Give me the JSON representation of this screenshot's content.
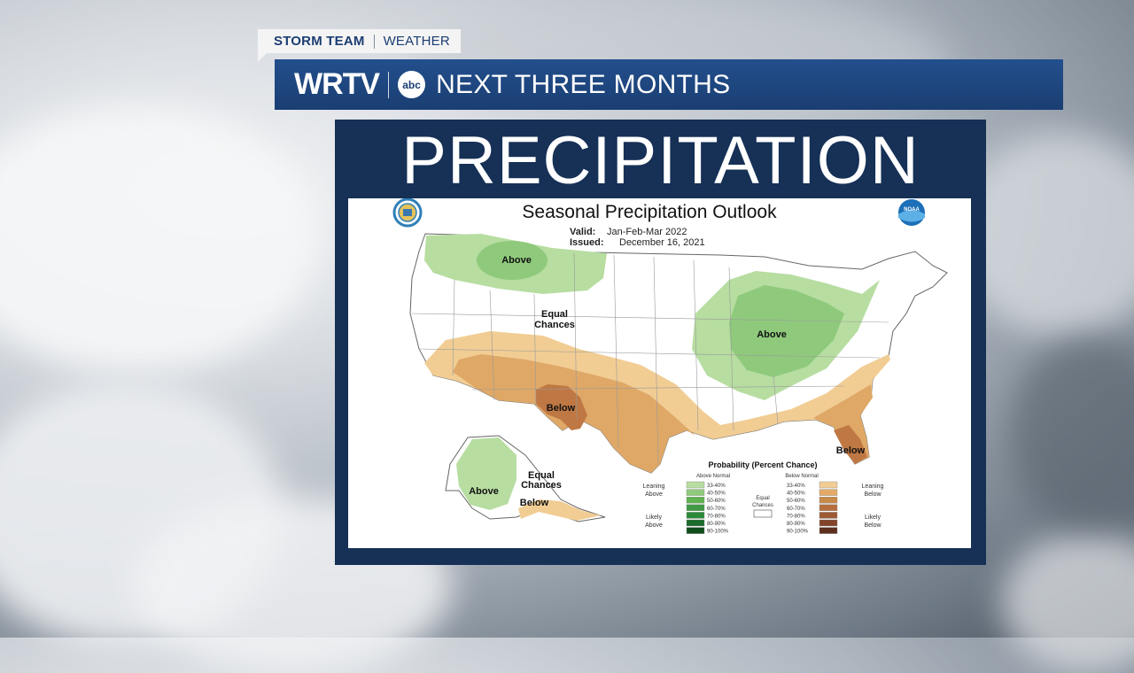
{
  "header": {
    "tag_main": "STORM TEAM",
    "tag_sub": "WEATHER",
    "brand": "WRTV",
    "network_logo": "abc",
    "title": "NEXT THREE MONTHS"
  },
  "panel": {
    "title": "PRECIPITATION"
  },
  "map": {
    "title": "Seasonal Precipitation Outlook",
    "valid_label": "Valid:",
    "valid_value": "Jan-Feb-Mar 2022",
    "issued_label": "Issued:",
    "issued_value": "December 16, 2021",
    "left_seal": "Department of Commerce seal",
    "right_seal_text": "NOAA",
    "region_labels": {
      "above_nw": "Above",
      "equal_center_1": "Equal",
      "equal_center_2": "Chances",
      "above_glakes": "Above",
      "below_sw": "Below",
      "below_se": "Below",
      "above_ak": "Above",
      "equal_ak_1": "Equal",
      "equal_ak_2": "Chances",
      "below_ak": "Below"
    },
    "legend": {
      "title": "Probability (Percent Chance)",
      "above_header": "Above Normal",
      "below_header": "Below Normal",
      "equal_1": "Equal",
      "equal_2": "Chances",
      "leaning_above_1": "Leaning",
      "leaning_above_2": "Above",
      "likely_above_1": "Likely",
      "likely_above_2": "Above",
      "leaning_below_1": "Leaning",
      "leaning_below_2": "Below",
      "likely_below_1": "Likely",
      "likely_below_2": "Below",
      "ranges": [
        "33-40%",
        "40-50%",
        "50-60%",
        "60-70%",
        "70-80%",
        "80-90%",
        "90-100%"
      ],
      "above_colors": [
        "#b7dda1",
        "#8fca7c",
        "#5fb24f",
        "#3f9a45",
        "#2a8a3a",
        "#1b6b2b",
        "#0f4d1c"
      ],
      "below_colors": [
        "#f1cd94",
        "#e3ab66",
        "#c88a48",
        "#b66f3c",
        "#9e5a33",
        "#82452a",
        "#5d2f1d"
      ]
    },
    "colors": {
      "above_33_40": "#b7dda1",
      "above_40_50": "#8fca7c",
      "below_33_40": "#f1cd94",
      "below_40_50": "#dfa867",
      "below_50_60": "#bf7844"
    }
  }
}
